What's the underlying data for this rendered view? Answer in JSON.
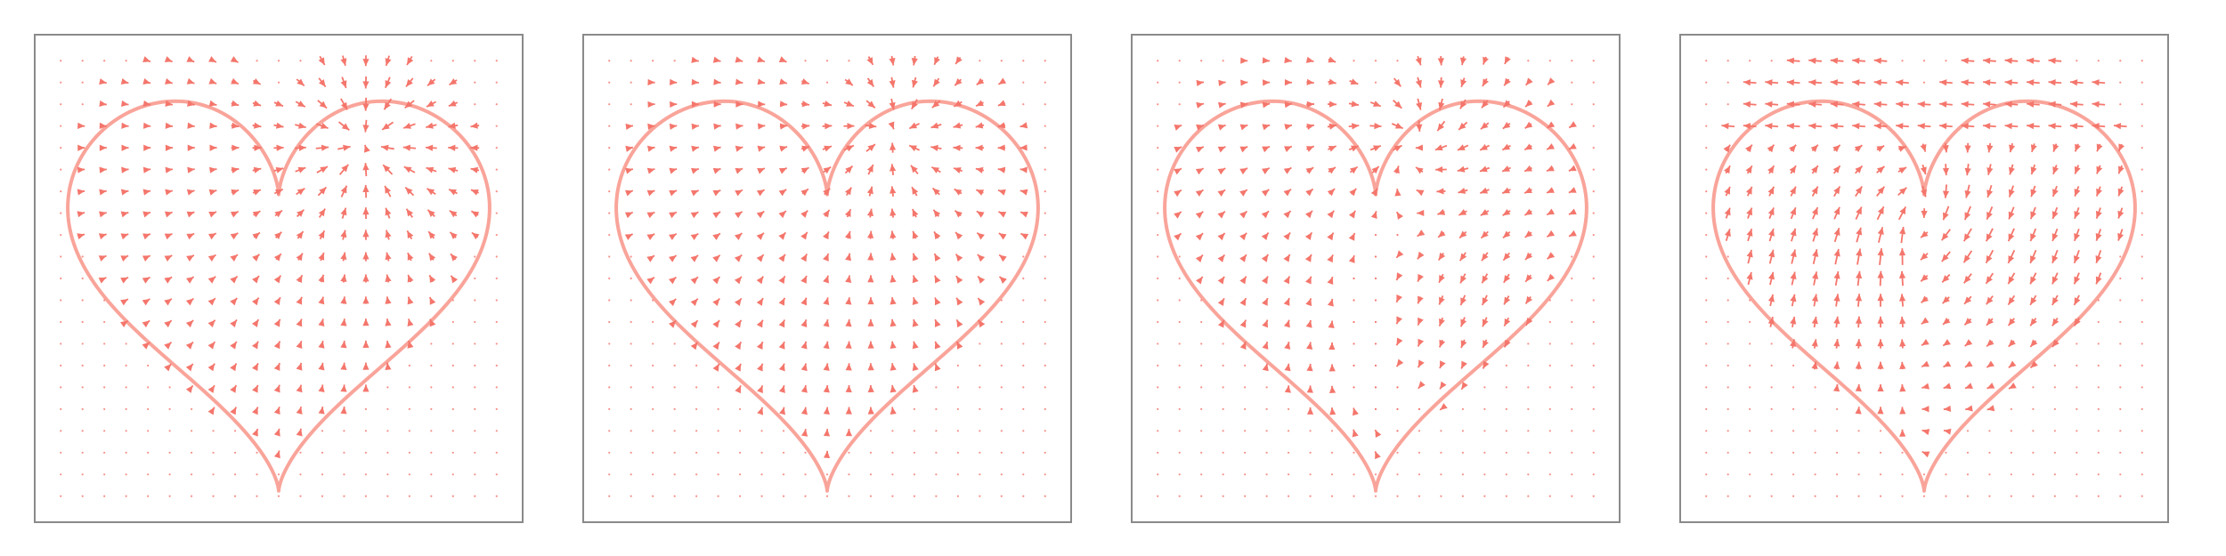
{
  "chart_data": [
    {
      "type": "quiver",
      "title": "",
      "xlabel": "",
      "ylabel": "",
      "grid": false,
      "axes_ticks": false,
      "xlim": [
        -1.2,
        1.2
      ],
      "ylim": [
        -1.2,
        1.0
      ],
      "colors": {
        "arrow": "#f4766c",
        "curve": "#f9a49a",
        "frame": "#8a8a8a"
      },
      "field": {
        "mode": "sink",
        "params": {
          "x0": 0.45,
          "y0": 0.55,
          "amp": 1.0,
          "rot": 0.0
        }
      }
    },
    {
      "type": "quiver",
      "title": "",
      "xlabel": "",
      "ylabel": "",
      "grid": false,
      "axes_ticks": false,
      "xlim": [
        -1.2,
        1.2
      ],
      "ylim": [
        -1.2,
        1.0
      ],
      "colors": {
        "arrow": "#f4766c",
        "curve": "#f9a49a",
        "frame": "#8a8a8a"
      },
      "field": {
        "mode": "sink",
        "params": {
          "x0": 0.35,
          "y0": 0.6,
          "amp": 0.85,
          "rot": 0.15
        }
      }
    },
    {
      "type": "quiver",
      "title": "",
      "xlabel": "",
      "ylabel": "",
      "grid": false,
      "axes_ticks": false,
      "xlim": [
        -1.2,
        1.2
      ],
      "ylim": [
        -1.2,
        1.0
      ],
      "colors": {
        "arrow": "#f4766c",
        "curve": "#f9a49a",
        "frame": "#8a8a8a"
      },
      "field": {
        "mode": "mixed",
        "params": {
          "x0": 0.2,
          "y0": 0.55,
          "amp": 0.9,
          "rot": 0.4
        }
      }
    },
    {
      "type": "quiver",
      "title": "",
      "xlabel": "",
      "ylabel": "",
      "grid": false,
      "axes_ticks": false,
      "xlim": [
        -1.2,
        1.2
      ],
      "ylim": [
        -1.2,
        1.0
      ],
      "colors": {
        "arrow": "#f4766c",
        "curve": "#f9a49a",
        "frame": "#8a8a8a"
      },
      "field": {
        "mode": "swirl",
        "params": {
          "x0": 0.0,
          "y0": 0.2,
          "amp": 1.25,
          "rot": 0.9
        }
      }
    }
  ]
}
